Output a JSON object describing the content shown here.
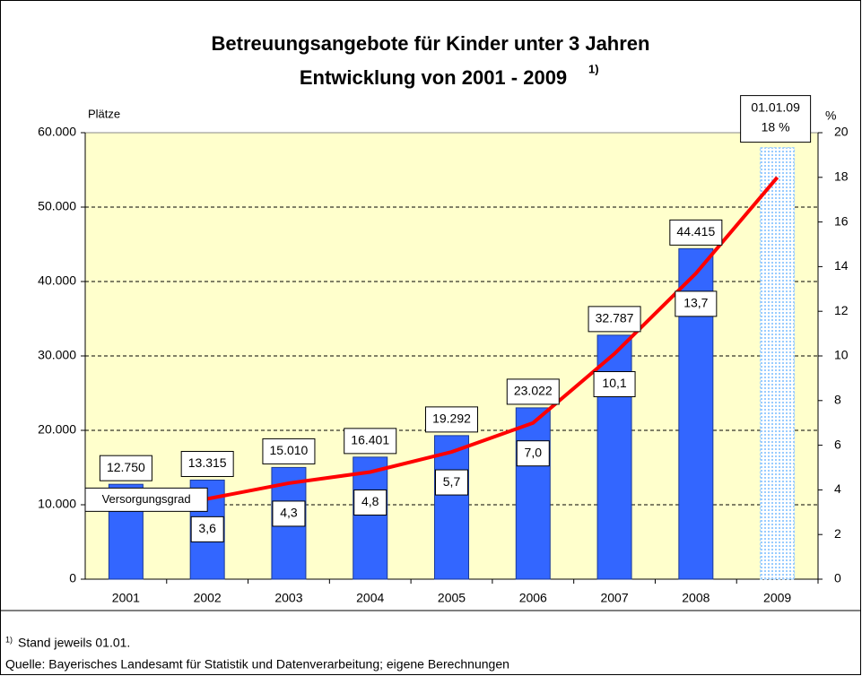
{
  "chart_data": {
    "type": "bar",
    "title": [
      "Betreuungsangebote für Kinder unter 3 Jahren",
      "Entwicklung von 2001 - 2009"
    ],
    "title_note": "1)",
    "ylabel": "Plätze",
    "y2label": "%",
    "categories": [
      "2001",
      "2002",
      "2003",
      "2004",
      "2005",
      "2006",
      "2007",
      "2008",
      "2009"
    ],
    "bars": {
      "color": "#3366ff",
      "values": [
        12750,
        13315,
        15010,
        16401,
        19292,
        23022,
        32787,
        44415,
        null
      ],
      "value_labels": [
        "12.750",
        "13.315",
        "15.010",
        "16.401",
        "19.292",
        "23.022",
        "32.787",
        "44.415",
        null
      ]
    },
    "projected": {
      "color": "#99ccff",
      "values": [
        null,
        null,
        null,
        null,
        null,
        null,
        null,
        null,
        58000
      ]
    },
    "line": {
      "type": "line",
      "name": "Versorgungsgrad",
      "axis": "y2",
      "color": "#ff0000",
      "values": [
        null,
        3.6,
        4.3,
        4.8,
        5.7,
        7.0,
        10.1,
        13.7,
        18
      ],
      "value_labels": [
        null,
        "3,6",
        "4,3",
        "4,8",
        "5,7",
        "7,0",
        "10,1",
        "13,7",
        null
      ]
    },
    "annotation": [
      "01.01.09",
      "18 %"
    ],
    "ylim": [
      0,
      60000
    ],
    "yticks": [
      0,
      {
        "value": 10000,
        "label": "10.000"
      },
      {
        "value": 20000,
        "label": "20.000"
      },
      {
        "value": 30000,
        "label": "30.000"
      },
      {
        "value": 40000,
        "label": "40.000"
      },
      {
        "value": 50000,
        "label": "50.000"
      },
      {
        "value": 60000,
        "label": "60.000"
      }
    ],
    "y2lim": [
      0,
      20
    ],
    "y2ticks": [
      0,
      2,
      4,
      6,
      8,
      10,
      12,
      14,
      16,
      18,
      20
    ],
    "grid": true,
    "footnote_mark": "1)",
    "footnote": "Stand jeweils 01.01.",
    "source": "Quelle: Bayerisches Landesamt für Statistik und Datenverarbeitung; eigene Berechnungen"
  }
}
